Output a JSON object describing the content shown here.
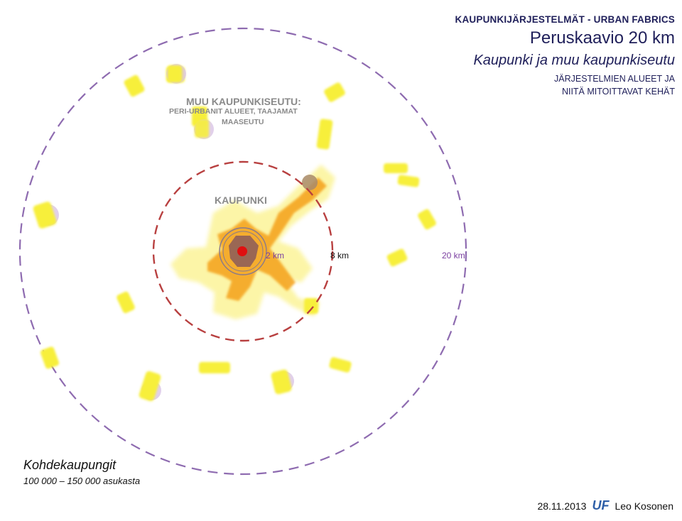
{
  "header": {
    "series": "KAUPUNKIJÄRJESTELMÄT - URBAN FABRICS",
    "title": "Peruskaavio  20 km",
    "subtitle": "Kaupunki ja muu kaupunkiseutu",
    "description_line1": "JÄRJESTELMIEN ALUEET JA",
    "description_line2": "NIITÄ MITOITTAVAT KEHÄT"
  },
  "regions": {
    "outer_label_line1": "MUU KAUPUNKISEUTU:",
    "outer_label_line2": "PERI-URBANIT ALUEET, TAAJAMAT",
    "outer_label_line3": "MAASEUTU",
    "city_label": "KAUPUNKI"
  },
  "rings": {
    "ring_2": "2 km",
    "ring_8": "8 km",
    "ring_20": "20 km"
  },
  "footer": {
    "title": "Kohdekaupungit",
    "subtitle": "100 000  – 150 000 asukasta",
    "date": "28.11.2013",
    "logo": "UF",
    "author": "Leo Kosonen"
  },
  "colors": {
    "outer_ring": "#8e6bb0",
    "middle_ring": "#b84040",
    "inner_ring": "#8a7a8a",
    "core": "#e01010",
    "dark_core": "#8a5a5a",
    "orange": "#f5a623",
    "yellow": "#f7ef3a",
    "pale_yellow": "#fbf28a",
    "lilac": "#d9c4e6"
  }
}
